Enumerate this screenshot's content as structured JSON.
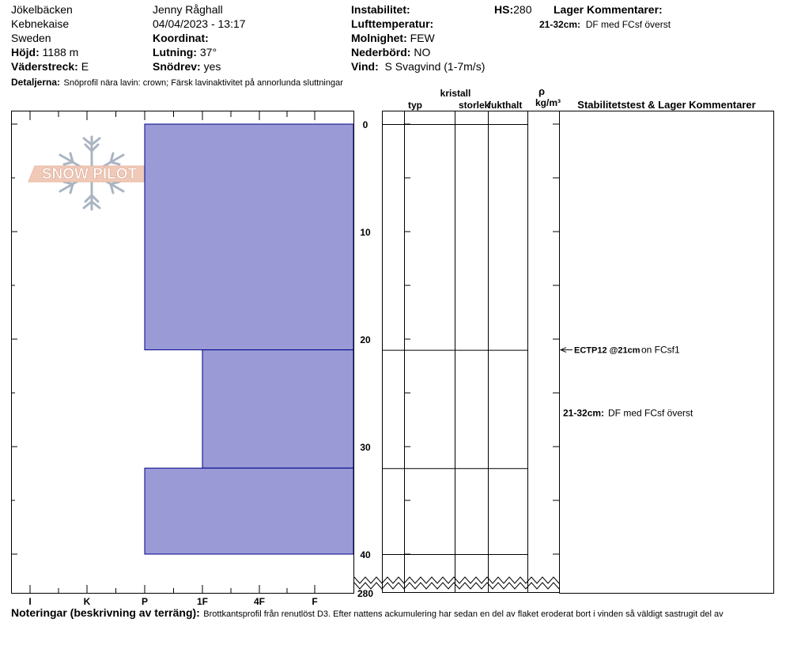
{
  "header": {
    "location": "Jökelbäcken",
    "area": "Kebnekaise",
    "country": "Sweden",
    "elevation_label": "Höjd:",
    "elevation_value": "1188 m",
    "aspect_label": "Väderstreck:",
    "aspect_value": "E",
    "observer": "Jenny Råghall",
    "datetime": "04/04/2023 - 13:17",
    "coordinate_label": "Koordinat:",
    "slope_label": "Lutning:",
    "slope_value": "37°",
    "wind_loading_label": "Snödrev:",
    "wind_loading_value": "yes",
    "instability_label": "Instabilitet:",
    "air_temp_label": "Lufttemperatur:",
    "sky_label": "Molnighet:",
    "sky_value": "FEW",
    "precip_label": "Nederbörd:",
    "precip_value": "NO",
    "wind_label": "Vind:",
    "wind_value": "S Svagvind (1-7m/s)",
    "hs_label": "HS:",
    "hs_value": "280",
    "layer_comments_label": "Lager Kommentarer:",
    "layer_comment_depth": "21-32cm:",
    "layer_comment_text": "DF med FCsf överst",
    "details_label": "Detaljerna:",
    "details_text": "Snöprofil nära lavin: crown; Färsk lavinaktivitet på annorlunda sluttningar"
  },
  "logo": {
    "text": "SNOW PILOT"
  },
  "columns": {
    "kristall": "kristall",
    "typ": "typ",
    "storlek": "storlek",
    "fukthalt": "fukthalt",
    "rho": "ρ",
    "density_unit": "kg/m³",
    "stability_header": "Stabilitetstest & Lager Kommentarer"
  },
  "chart_data": {
    "type": "bar",
    "hardness_scale": [
      "I",
      "K",
      "P",
      "1F",
      "4F",
      "F"
    ],
    "depth_ticks": [
      "0",
      "10",
      "20",
      "30",
      "40",
      "280"
    ],
    "depth_range_cm": [
      0,
      40
    ],
    "total_depth_cm": 280,
    "layers": [
      {
        "top_cm": 0,
        "bottom_cm": 21,
        "hardness": "P"
      },
      {
        "top_cm": 21,
        "bottom_cm": 32,
        "hardness": "1F"
      },
      {
        "top_cm": 32,
        "bottom_cm": 40,
        "hardness": "P"
      }
    ],
    "layer_fill": "#9a9ad6",
    "layer_stroke": "#00008b"
  },
  "stability_test": {
    "depth_cm": 21,
    "result": "ECTP12 @21cm",
    "detail": "on FCsf1"
  },
  "layer_comment": {
    "depth": "21-32cm:",
    "text": "DF med FCsf överst"
  },
  "footer": {
    "notes_label": "Noteringar (beskrivning av terräng):",
    "notes_text": "Brottkantsprofil från renutlöst D3. Efter nattens ackumulering har sedan en del av flaket eroderat bort i vinden så väldigt sastrugit del av"
  }
}
